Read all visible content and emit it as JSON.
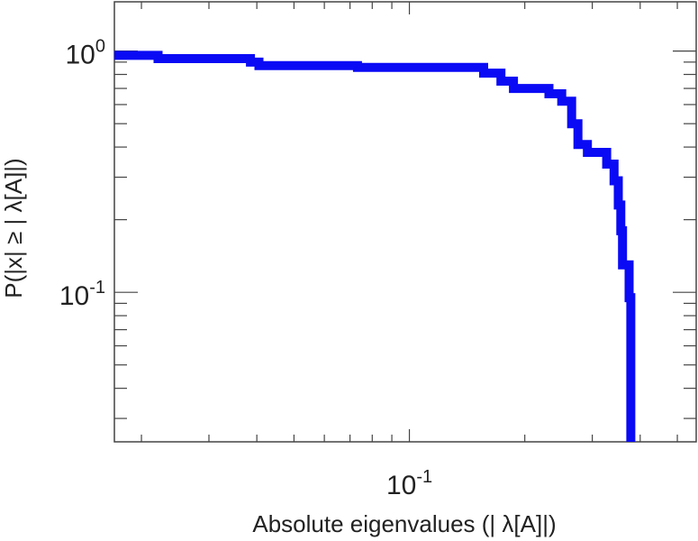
{
  "chart_data": {
    "type": "line",
    "title": "",
    "xlabel": "Absolute eigenvalues (|     λ[A]|)",
    "ylabel": "P(|x|  ≥ | λ[A]|)",
    "x_scale": "log",
    "y_scale": "log",
    "xlim": [
      0.017,
      0.56
    ],
    "ylim": [
      0.024,
      1.6
    ],
    "x_major_ticks": [
      {
        "value": 0.1,
        "base": "10",
        "exp": "-1"
      }
    ],
    "y_major_ticks": [
      {
        "value": 1,
        "base": "10",
        "exp": "0"
      },
      {
        "value": 0.1,
        "base": "10",
        "exp": "-1"
      }
    ],
    "grid": false,
    "series": [
      {
        "color": "#0a0af5",
        "step": true,
        "points": [
          [
            0.017,
            0.96
          ],
          [
            0.0221,
            0.96
          ],
          [
            0.0221,
            0.93
          ],
          [
            0.0385,
            0.93
          ],
          [
            0.0385,
            0.9
          ],
          [
            0.0405,
            0.9
          ],
          [
            0.0405,
            0.87
          ],
          [
            0.0732,
            0.87
          ],
          [
            0.0732,
            0.855
          ],
          [
            0.1562,
            0.855
          ],
          [
            0.1562,
            0.81
          ],
          [
            0.1733,
            0.81
          ],
          [
            0.1733,
            0.75
          ],
          [
            0.1868,
            0.75
          ],
          [
            0.1868,
            0.7
          ],
          [
            0.2312,
            0.7
          ],
          [
            0.2312,
            0.665
          ],
          [
            0.2497,
            0.665
          ],
          [
            0.2497,
            0.62
          ],
          [
            0.265,
            0.62
          ],
          [
            0.265,
            0.5
          ],
          [
            0.2753,
            0.5
          ],
          [
            0.2753,
            0.41
          ],
          [
            0.2913,
            0.41
          ],
          [
            0.2913,
            0.38
          ],
          [
            0.327,
            0.38
          ],
          [
            0.327,
            0.34
          ],
          [
            0.342,
            0.34
          ],
          [
            0.342,
            0.29
          ],
          [
            0.3508,
            0.29
          ],
          [
            0.3508,
            0.23
          ],
          [
            0.3561,
            0.23
          ],
          [
            0.3561,
            0.18
          ],
          [
            0.3597,
            0.18
          ],
          [
            0.3597,
            0.13
          ],
          [
            0.3743,
            0.13
          ],
          [
            0.3743,
            0.095
          ],
          [
            0.3781,
            0.095
          ],
          [
            0.3781,
            0.024
          ]
        ]
      }
    ]
  }
}
